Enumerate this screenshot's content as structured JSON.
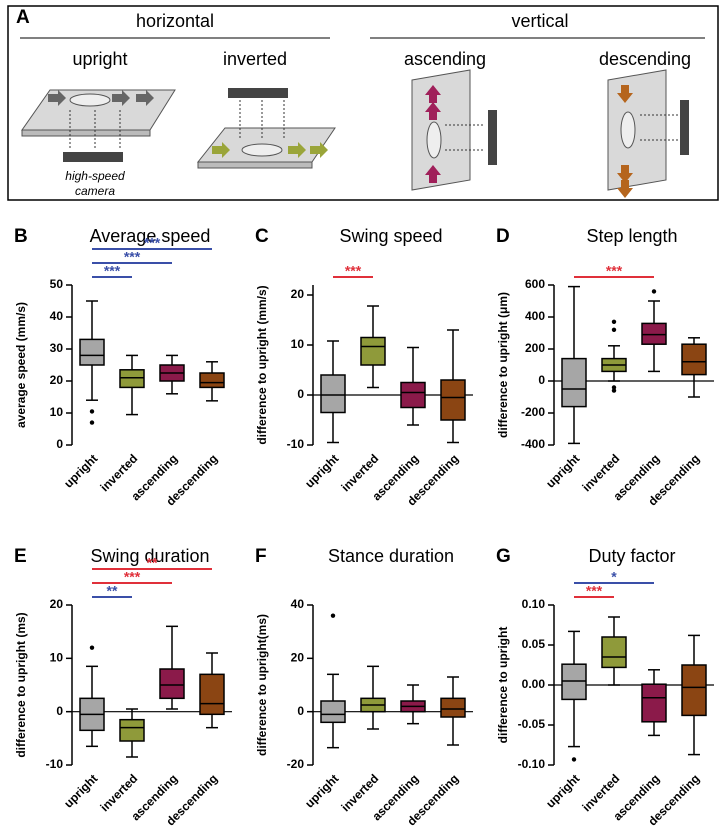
{
  "panel_a": {
    "label": "A",
    "groups": [
      {
        "title": "horizontal",
        "views": [
          "upright",
          "inverted"
        ]
      },
      {
        "title": "vertical",
        "views": [
          "ascending",
          "descending"
        ]
      }
    ],
    "camera_label": [
      "high-speed",
      "camera"
    ]
  },
  "chart_data": [
    {
      "type": "box",
      "label": "B",
      "title": "Average speed",
      "ylabel": "average speed (mm/s)",
      "categories": [
        "upright",
        "inverted",
        "ascending",
        "descending"
      ],
      "colors": [
        "#a6a6a6",
        "#8f9a3a",
        "#8b1a4a",
        "#8b4513"
      ],
      "boxes": [
        {
          "whisker_low": 14,
          "q1": 25,
          "median": 28,
          "q3": 33,
          "whisker_high": 45,
          "outliers": [
            10.5,
            7
          ]
        },
        {
          "whisker_low": 9.5,
          "q1": 18,
          "median": 21,
          "q3": 23.5,
          "whisker_high": 28,
          "outliers": []
        },
        {
          "whisker_low": 16,
          "q1": 20,
          "median": 22.5,
          "q3": 25,
          "whisker_high": 28,
          "outliers": []
        },
        {
          "whisker_low": 13.8,
          "q1": 18,
          "median": 19.5,
          "q3": 22.5,
          "whisker_high": 26,
          "outliers": []
        }
      ],
      "ylim": [
        0,
        50
      ],
      "yticks": [
        0,
        10,
        20,
        30,
        40,
        50
      ],
      "zero_line": false,
      "significance": [
        {
          "from": "upright",
          "to": "inverted",
          "label": "***",
          "color": "#3a4fa8"
        },
        {
          "from": "upright",
          "to": "ascending",
          "label": "***",
          "color": "#3a4fa8"
        },
        {
          "from": "upright",
          "to": "descending",
          "label": "***",
          "color": "#3a4fa8"
        }
      ]
    },
    {
      "type": "box",
      "label": "C",
      "title": "Swing speed",
      "ylabel": "difference to upright (mm/s)",
      "categories": [
        "upright",
        "inverted",
        "ascending",
        "descending"
      ],
      "colors": [
        "#a6a6a6",
        "#8f9a3a",
        "#8b1a4a",
        "#8b4513"
      ],
      "boxes": [
        {
          "whisker_low": -9.5,
          "q1": -3.5,
          "median": 0,
          "q3": 4,
          "whisker_high": 10.8,
          "outliers": []
        },
        {
          "whisker_low": 1.5,
          "q1": 6,
          "median": 9.7,
          "q3": 11.5,
          "whisker_high": 17.8,
          "outliers": []
        },
        {
          "whisker_low": -6,
          "q1": -2.5,
          "median": 0.5,
          "q3": 2.5,
          "whisker_high": 9.5,
          "outliers": []
        },
        {
          "whisker_low": -9.5,
          "q1": -5,
          "median": -0.5,
          "q3": 3,
          "whisker_high": 13,
          "outliers": []
        }
      ],
      "ylim": [
        -10,
        22
      ],
      "yticks": [
        -10,
        0,
        10,
        20
      ],
      "zero_line": true,
      "significance": [
        {
          "from": "upright",
          "to": "inverted",
          "label": "***",
          "color": "#e0303a"
        }
      ]
    },
    {
      "type": "box",
      "label": "D",
      "title": "Step length",
      "ylabel": "difference to upright (μm)",
      "categories": [
        "upright",
        "inverted",
        "ascending",
        "descending"
      ],
      "colors": [
        "#a6a6a6",
        "#8f9a3a",
        "#8b1a4a",
        "#8b4513"
      ],
      "boxes": [
        {
          "whisker_low": -390,
          "q1": -160,
          "median": -50,
          "q3": 140,
          "whisker_high": 590,
          "outliers": []
        },
        {
          "whisker_low": 0,
          "q1": 60,
          "median": 100,
          "q3": 140,
          "whisker_high": 220,
          "outliers": [
            320,
            370,
            -40,
            -60
          ]
        },
        {
          "whisker_low": 60,
          "q1": 230,
          "median": 290,
          "q3": 360,
          "whisker_high": 500,
          "outliers": [
            560
          ]
        },
        {
          "whisker_low": -100,
          "q1": 40,
          "median": 120,
          "q3": 230,
          "whisker_high": 270,
          "outliers": []
        }
      ],
      "ylim": [
        -400,
        600
      ],
      "yticks": [
        -400,
        -200,
        0,
        200,
        400,
        600
      ],
      "zero_line": true,
      "significance": [
        {
          "from": "upright",
          "to": "ascending",
          "label": "***",
          "color": "#e0303a"
        }
      ]
    },
    {
      "type": "box",
      "label": "E",
      "title": "Swing duration",
      "ylabel": "difference to upright (ms)",
      "categories": [
        "upright",
        "inverted",
        "ascending",
        "descending"
      ],
      "colors": [
        "#a6a6a6",
        "#8f9a3a",
        "#8b1a4a",
        "#8b4513"
      ],
      "boxes": [
        {
          "whisker_low": -6.5,
          "q1": -3.5,
          "median": -0.5,
          "q3": 2.5,
          "whisker_high": 8.5,
          "outliers": [
            12
          ]
        },
        {
          "whisker_low": -8.5,
          "q1": -5.5,
          "median": -3,
          "q3": -1.5,
          "whisker_high": 0.5,
          "outliers": []
        },
        {
          "whisker_low": 0.5,
          "q1": 2.5,
          "median": 5,
          "q3": 8,
          "whisker_high": 16,
          "outliers": []
        },
        {
          "whisker_low": -3,
          "q1": -0.5,
          "median": 1.5,
          "q3": 7,
          "whisker_high": 11,
          "outliers": []
        }
      ],
      "ylim": [
        -10,
        20
      ],
      "yticks": [
        -10,
        0,
        10,
        20
      ],
      "zero_line": true,
      "significance": [
        {
          "from": "upright",
          "to": "inverted",
          "label": "**",
          "color": "#3a4fa8"
        },
        {
          "from": "upright",
          "to": "ascending",
          "label": "***",
          "color": "#e0303a"
        },
        {
          "from": "upright",
          "to": "descending",
          "label": "**",
          "color": "#e0303a"
        }
      ]
    },
    {
      "type": "box",
      "label": "F",
      "title": "Stance duration",
      "ylabel": "difference to upright(ms)",
      "categories": [
        "upright",
        "inverted",
        "ascending",
        "descending"
      ],
      "colors": [
        "#a6a6a6",
        "#8f9a3a",
        "#8b1a4a",
        "#8b4513"
      ],
      "boxes": [
        {
          "whisker_low": -13.5,
          "q1": -4,
          "median": -1,
          "q3": 4,
          "whisker_high": 14,
          "outliers": [
            36
          ]
        },
        {
          "whisker_low": -6.5,
          "q1": 0,
          "median": 2.5,
          "q3": 5,
          "whisker_high": 17,
          "outliers": []
        },
        {
          "whisker_low": -4.5,
          "q1": 0,
          "median": 2,
          "q3": 4,
          "whisker_high": 10,
          "outliers": []
        },
        {
          "whisker_low": -12.5,
          "q1": -2,
          "median": 1,
          "q3": 5,
          "whisker_high": 13,
          "outliers": []
        }
      ],
      "ylim": [
        -20,
        40
      ],
      "yticks": [
        -20,
        0,
        20,
        40
      ],
      "zero_line": true,
      "significance": []
    },
    {
      "type": "box",
      "label": "G",
      "title": "Duty factor",
      "ylabel": "difference to upright",
      "categories": [
        "upright",
        "inverted",
        "ascending",
        "descending"
      ],
      "colors": [
        "#a6a6a6",
        "#8f9a3a",
        "#8b1a4a",
        "#8b4513"
      ],
      "boxes": [
        {
          "whisker_low": -0.077,
          "q1": -0.018,
          "median": 0.005,
          "q3": 0.026,
          "whisker_high": 0.067,
          "outliers": [
            -0.093
          ]
        },
        {
          "whisker_low": 0,
          "q1": 0.022,
          "median": 0.035,
          "q3": 0.06,
          "whisker_high": 0.085,
          "outliers": []
        },
        {
          "whisker_low": -0.063,
          "q1": -0.046,
          "median": -0.016,
          "q3": 0.001,
          "whisker_high": 0.019,
          "outliers": []
        },
        {
          "whisker_low": -0.087,
          "q1": -0.038,
          "median": -0.003,
          "q3": 0.025,
          "whisker_high": 0.062,
          "outliers": []
        }
      ],
      "ylim": [
        -0.1,
        0.1
      ],
      "yticks": [
        {
          "value": -0.1,
          "label": "-0.10"
        },
        {
          "value": -0.05,
          "label": "-0.05"
        },
        {
          "value": 0,
          "label": "0.00"
        },
        {
          "value": 0.05,
          "label": "0.05"
        },
        {
          "value": 0.1,
          "label": "0.10"
        }
      ],
      "zero_line": true,
      "significance": [
        {
          "from": "upright",
          "to": "inverted",
          "label": "***",
          "color": "#e0303a"
        },
        {
          "from": "upright",
          "to": "ascending",
          "label": "*",
          "color": "#3a4fa8"
        }
      ]
    }
  ]
}
